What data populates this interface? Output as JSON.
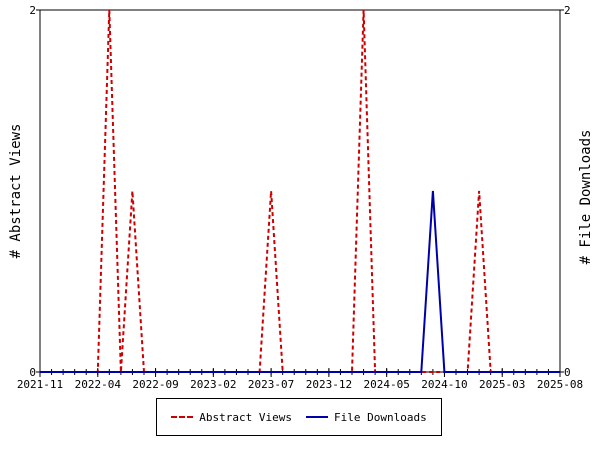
{
  "chart_data": {
    "type": "line",
    "title": "",
    "xlabel": "",
    "ylabel": "# Abstract Views",
    "y2label": "# File Downloads",
    "ylim": [
      0,
      2
    ],
    "y2lim": [
      0,
      2
    ],
    "y_ticks": [
      "0",
      "2"
    ],
    "y2_ticks": [
      "0",
      "2"
    ],
    "x_ticks": [
      "2021-11",
      "2022-04",
      "2022-09",
      "2023-02",
      "2023-07",
      "2023-12",
      "2024-05",
      "2024-10",
      "2025-03",
      "2025-08"
    ],
    "x_range_months": [
      "2021-11",
      "2025-08"
    ],
    "grid": false,
    "legend_position": "bottom",
    "series": [
      {
        "name": "Abstract Views",
        "color": "#cc0000",
        "style": "dashed",
        "axis": "left",
        "points": [
          [
            "2021-11",
            0
          ],
          [
            "2022-04",
            0
          ],
          [
            "2022-05",
            2
          ],
          [
            "2022-06",
            0
          ],
          [
            "2022-07",
            1
          ],
          [
            "2022-08",
            0
          ],
          [
            "2023-06",
            0
          ],
          [
            "2023-07",
            1
          ],
          [
            "2023-08",
            0
          ],
          [
            "2024-02",
            0
          ],
          [
            "2024-03",
            2
          ],
          [
            "2024-04",
            0
          ],
          [
            "2024-12",
            0
          ],
          [
            "2025-01",
            1
          ],
          [
            "2025-02",
            0
          ],
          [
            "2025-08",
            0
          ]
        ]
      },
      {
        "name": "File Downloads",
        "color": "#0000aa",
        "style": "solid",
        "axis": "right",
        "points": [
          [
            "2021-11",
            0
          ],
          [
            "2024-08",
            0
          ],
          [
            "2024-09",
            1
          ],
          [
            "2024-10",
            0
          ],
          [
            "2025-08",
            0
          ]
        ]
      }
    ]
  }
}
